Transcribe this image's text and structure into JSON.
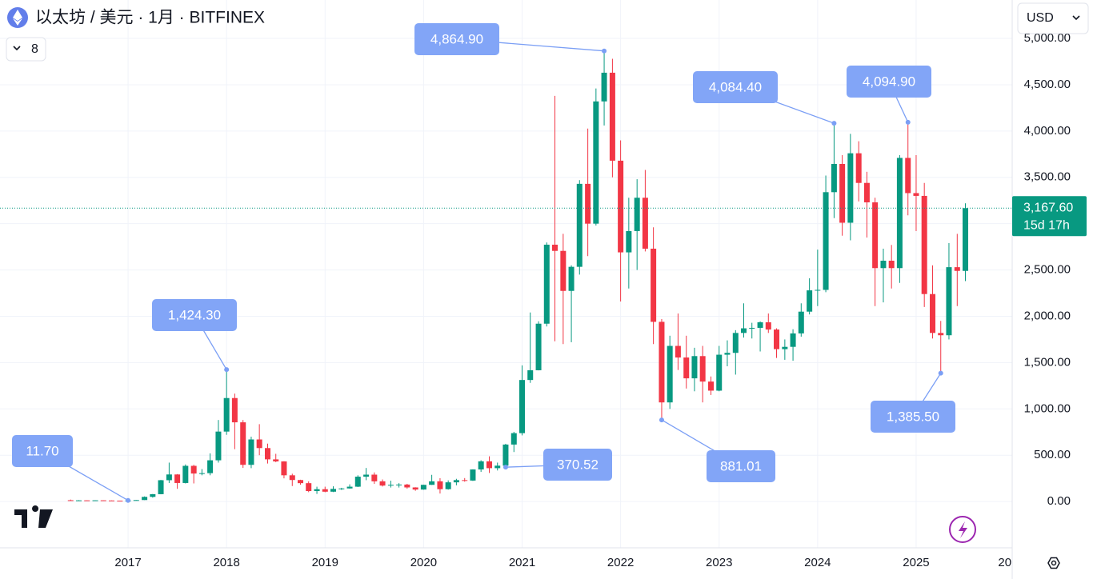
{
  "chart_data": {
    "type": "candlestick",
    "title": "以太坊 / 美元 · 1月 · BITFINEX",
    "currency": "USD",
    "indicator_count": 8,
    "up_color": "#089981",
    "down_color": "#f23645",
    "x": [
      2016.417,
      2016.5,
      2016.583,
      2016.667,
      2016.75,
      2016.833,
      2016.917,
      2017,
      2017.083,
      2017.167,
      2017.25,
      2017.333,
      2017.417,
      2017.5,
      2017.583,
      2017.667,
      2017.75,
      2017.833,
      2017.917,
      2018,
      2018.083,
      2018.167,
      2018.25,
      2018.333,
      2018.417,
      2018.5,
      2018.583,
      2018.667,
      2018.75,
      2018.833,
      2018.917,
      2019,
      2019.083,
      2019.167,
      2019.25,
      2019.333,
      2019.417,
      2019.5,
      2019.583,
      2019.667,
      2019.75,
      2019.833,
      2019.917,
      2020,
      2020.083,
      2020.167,
      2020.25,
      2020.333,
      2020.417,
      2020.5,
      2020.583,
      2020.667,
      2020.75,
      2020.833,
      2020.917,
      2021,
      2021.083,
      2021.167,
      2021.25,
      2021.333,
      2021.417,
      2021.5,
      2021.583,
      2021.667,
      2021.75,
      2021.833,
      2021.917,
      2022,
      2022.083,
      2022.167,
      2022.25,
      2022.333,
      2022.417,
      2022.5,
      2022.583,
      2022.667,
      2022.75,
      2022.833,
      2022.917,
      2023,
      2023.083,
      2023.167,
      2023.25,
      2023.333,
      2023.417,
      2023.5,
      2023.583,
      2023.667,
      2023.75,
      2023.833,
      2023.917,
      2024,
      2024.083,
      2024.167,
      2024.25,
      2024.333,
      2024.417,
      2024.5,
      2024.583,
      2024.667,
      2024.75,
      2024.833,
      2024.917,
      2025,
      2025.083,
      2025.167,
      2025.25,
      2025.333,
      2025.417,
      2025.5
    ],
    "open": [
      14,
      12,
      12.5,
      11.8,
      13,
      11,
      8.6,
      8.0,
      10.7,
      15.7,
      50,
      79,
      230,
      292,
      200,
      385,
      302,
      306,
      445,
      755,
      1117,
      855,
      396,
      670,
      577,
      455,
      433,
      283,
      232,
      198,
      113,
      133,
      106,
      136,
      141,
      160,
      268,
      290,
      218,
      172,
      180,
      183,
      152,
      129,
      180,
      218,
      133,
      207,
      231,
      226,
      346,
      434,
      360,
      387,
      615,
      738,
      1312,
      1417,
      1920,
      2773,
      2706,
      2274,
      2534,
      3430,
      3000,
      4320,
      4630,
      3680,
      2690,
      2920,
      3280,
      2730,
      1940,
      1070,
      1680,
      1555,
      1330,
      1570,
      1295,
      1197,
      1585,
      1605,
      1820,
      1870,
      1875,
      1935,
      1857,
      1645,
      1670,
      1815,
      2050,
      2280,
      2285,
      3340,
      3645,
      3010,
      3760,
      3440,
      3230,
      2520,
      2600,
      2520,
      3710,
      3330,
      3300,
      2240,
      1820,
      1795,
      2530,
      2490
    ],
    "high": [
      21,
      15,
      12.8,
      14,
      13.5,
      11.5,
      8.9,
      11.7,
      16,
      55,
      81,
      233,
      420,
      296,
      400,
      396,
      350,
      520,
      880,
      1424.3,
      1165,
      880,
      700,
      835,
      625,
      515,
      435,
      300,
      235,
      218,
      160,
      160,
      164,
      148,
      185,
      283,
      362,
      314,
      238,
      225,
      198,
      191,
      154,
      181,
      288,
      252,
      228,
      245,
      253,
      348,
      445,
      488,
      420,
      623,
      752,
      1470,
      2041,
      1946,
      2797,
      4380,
      2890,
      2550,
      3470,
      4027,
      4460,
      4864.9,
      4780,
      3900,
      3280,
      3480,
      3580,
      2960,
      1970,
      1790,
      2030,
      1790,
      1660,
      1680,
      1350,
      1680,
      1740,
      1850,
      2140,
      1930,
      1945,
      2030,
      1870,
      1750,
      1860,
      2140,
      2410,
      2720,
      3520,
      4084.4,
      3740,
      3970,
      3890,
      3560,
      3280,
      2730,
      2770,
      3740,
      4094.9,
      3740,
      3440,
      2550,
      1950,
      2790,
      2890,
      3220
    ],
    "low": [
      11,
      10.5,
      10,
      11,
      10.3,
      8.5,
      6.9,
      7.9,
      10.4,
      15.6,
      42,
      78,
      200,
      137,
      195,
      195,
      283,
      283,
      420,
      720,
      565,
      363,
      360,
      500,
      410,
      425,
      250,
      167,
      182,
      101,
      82,
      100,
      102,
      125,
      139,
      156,
      230,
      190,
      162,
      151,
      151,
      139,
      116,
      127,
      179,
      86,
      128,
      175,
      214,
      222,
      320,
      308,
      335,
      370.52,
      534,
      714,
      1281,
      1416,
      1890,
      1730,
      1700,
      1720,
      2450,
      2650,
      2980,
      4060,
      3500,
      2160,
      2300,
      2500,
      2700,
      1700,
      881.01,
      1000,
      1420,
      1220,
      1190,
      1070,
      1150,
      1190,
      1460,
      1370,
      1770,
      1760,
      1620,
      1820,
      1550,
      1530,
      1520,
      1780,
      2020,
      2110,
      2260,
      3060,
      2870,
      2820,
      3240,
      2850,
      2110,
      2150,
      2300,
      2360,
      3090,
      2920,
      2100,
      1760,
      1385.5,
      1750,
      2110,
      2380
    ],
    "close": [
      12,
      12.5,
      11.8,
      13,
      11,
      8.6,
      8.0,
      10.7,
      15.7,
      50,
      79,
      230,
      292,
      200,
      385,
      302,
      306,
      445,
      755,
      1117,
      855,
      396,
      670,
      577,
      455,
      433,
      283,
      232,
      198,
      113,
      133,
      106,
      136,
      141,
      160,
      268,
      290,
      218,
      172,
      180,
      183,
      152,
      129,
      180,
      218,
      133,
      207,
      231,
      226,
      346,
      434,
      360,
      387,
      615,
      738,
      1312,
      1417,
      1920,
      2773,
      2706,
      2274,
      2534,
      3430,
      3000,
      4320,
      4630,
      3680,
      2690,
      2920,
      3280,
      2730,
      1940,
      1070,
      1680,
      1555,
      1330,
      1570,
      1295,
      1197,
      1585,
      1605,
      1820,
      1870,
      1875,
      1935,
      1857,
      1645,
      1670,
      1815,
      2050,
      2280,
      2285,
      3340,
      3645,
      3010,
      3760,
      3440,
      3230,
      2520,
      2600,
      2520,
      3710,
      3330,
      3300,
      2240,
      1820,
      1795,
      2530,
      2490,
      3167.6
    ],
    "xlim": [
      2015.7,
      2025.975
    ],
    "xticks": [
      2017,
      2018,
      2019,
      2020,
      2021,
      2022,
      2023,
      2024,
      2025,
      {
        "value": 2026,
        "label": "20"
      }
    ],
    "ylim": [
      -500,
      5415
    ],
    "yticks": [
      {
        "value": 0,
        "label": "0.00"
      },
      {
        "value": 500,
        "label": "500.00"
      },
      {
        "value": 1000,
        "label": "1,000.00"
      },
      {
        "value": 1500,
        "label": "1,500.00"
      },
      {
        "value": 2000,
        "label": "2,000.00"
      },
      {
        "value": 2500,
        "label": "2,500.00"
      },
      {
        "value": 3000,
        "label": "3,000.00"
      },
      {
        "value": 3500,
        "label": "3,500.00"
      },
      {
        "value": 4000,
        "label": "4,000.00"
      },
      {
        "value": 4500,
        "label": "4,500.00"
      },
      {
        "value": 5000,
        "label": "5,000.00"
      }
    ],
    "grid": true,
    "last_price": {
      "value": 3167.6,
      "label": "3,167.60"
    },
    "countdown": "15d 17h",
    "annotations": [
      {
        "x": 2017,
        "value": 11.7,
        "label": "11.70"
      },
      {
        "x": 2018,
        "value": 1424.3,
        "label": "1,424.30"
      },
      {
        "x": 2020.833,
        "value": 370.52,
        "label": "370.52"
      },
      {
        "x": 2021.833,
        "value": 4864.9,
        "label": "4,864.90"
      },
      {
        "x": 2022.417,
        "value": 881.01,
        "label": "881.01"
      },
      {
        "x": 2024.167,
        "value": 4084.4,
        "label": "4,084.40"
      },
      {
        "x": 2024.917,
        "value": 4094.9,
        "label": "4,094.90"
      },
      {
        "x": 2025.25,
        "value": 1385.5,
        "label": "1,385.50"
      }
    ]
  }
}
